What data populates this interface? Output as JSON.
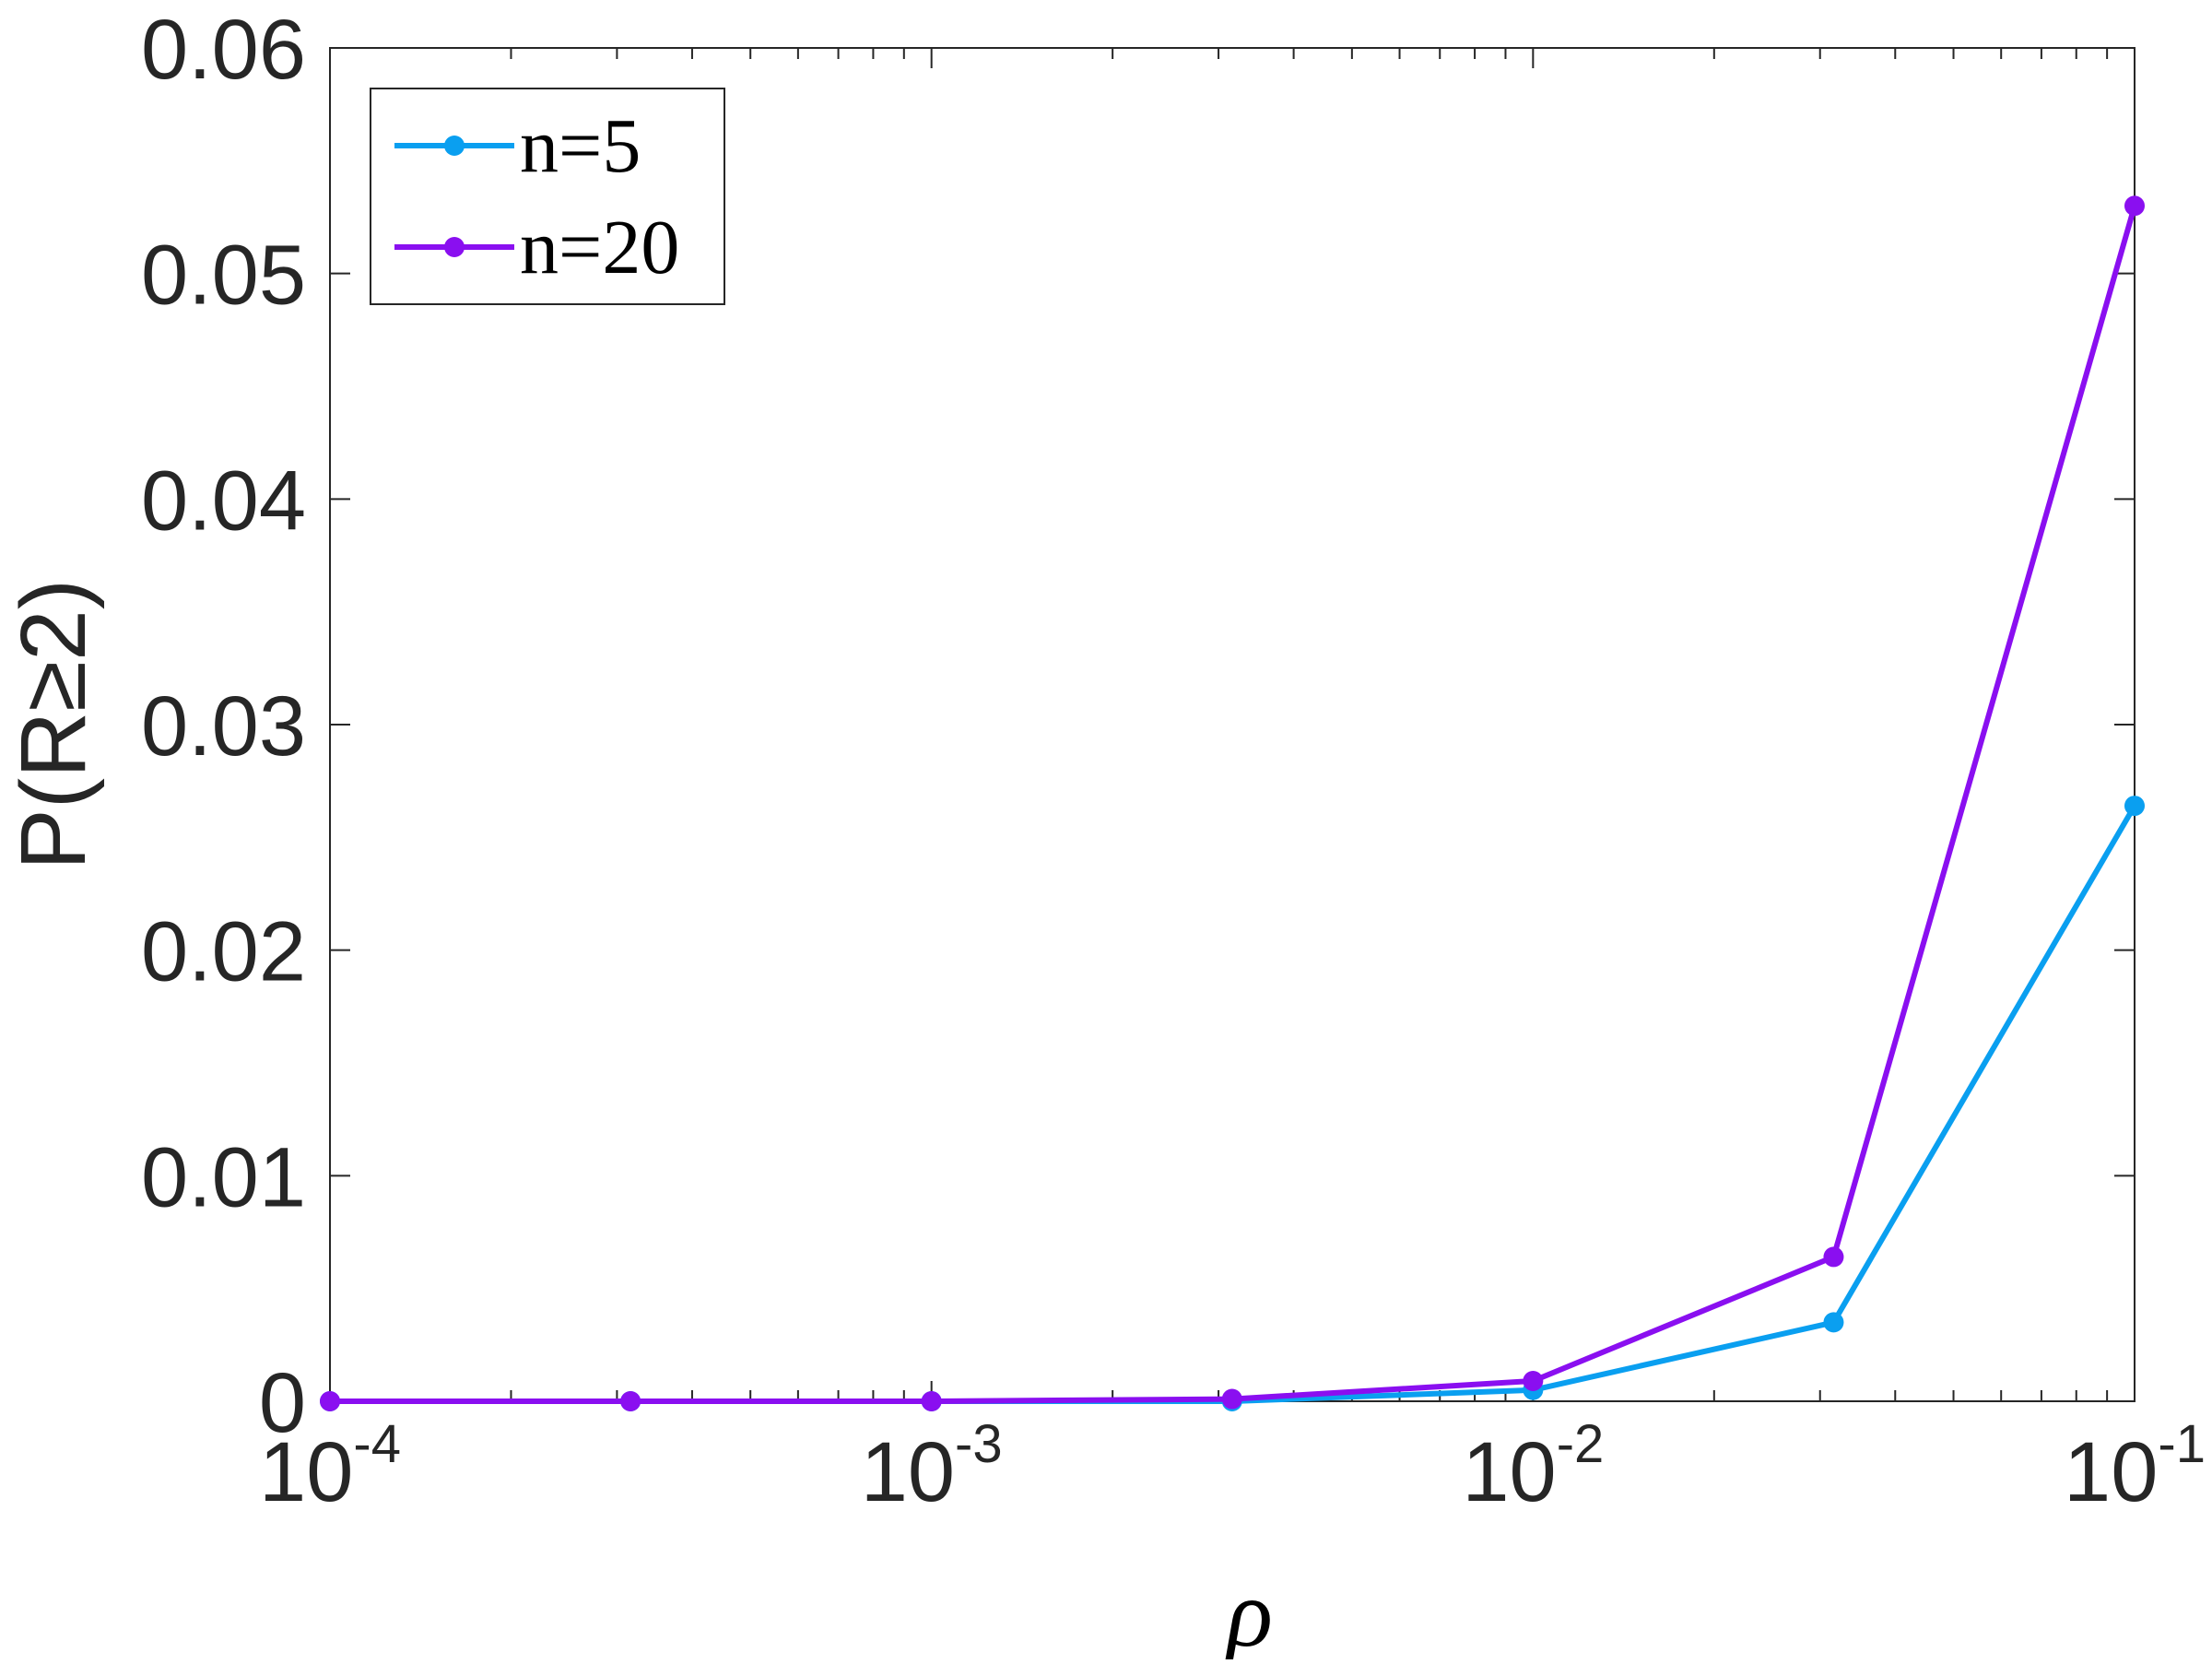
{
  "chart_data": {
    "type": "line",
    "xscale": "log",
    "xlim": [
      0.0001,
      0.1
    ],
    "ylim": [
      0,
      0.06
    ],
    "xlabel": "ρ",
    "ylabel": "P(R≥2)",
    "xticks": [
      {
        "value": 0.0001,
        "base": "10",
        "exp": "-4"
      },
      {
        "value": 0.001,
        "base": "10",
        "exp": "-3"
      },
      {
        "value": 0.01,
        "base": "10",
        "exp": "-2"
      },
      {
        "value": 0.1,
        "base": "10",
        "exp": "-1"
      }
    ],
    "yticks": [
      {
        "value": 0,
        "label": "0"
      },
      {
        "value": 0.01,
        "label": "0.01"
      },
      {
        "value": 0.02,
        "label": "0.02"
      },
      {
        "value": 0.03,
        "label": "0.03"
      },
      {
        "value": 0.04,
        "label": "0.04"
      },
      {
        "value": 0.05,
        "label": "0.05"
      },
      {
        "value": 0.06,
        "label": "0.06"
      }
    ],
    "grid": false,
    "legend_position": "top-left",
    "x": [
      0.0001,
      0.000316,
      0.001,
      0.00316,
      0.01,
      0.0316,
      0.1
    ],
    "series": [
      {
        "name": "n=5",
        "color": "#0a9ff0",
        "values": [
          0,
          0,
          0,
          0,
          0.0005,
          0.0035,
          0.0264
        ]
      },
      {
        "name": "n=20",
        "color": "#8a0ff0",
        "values": [
          0,
          0,
          0,
          0.0001,
          0.0009,
          0.0064,
          0.053
        ]
      }
    ]
  }
}
